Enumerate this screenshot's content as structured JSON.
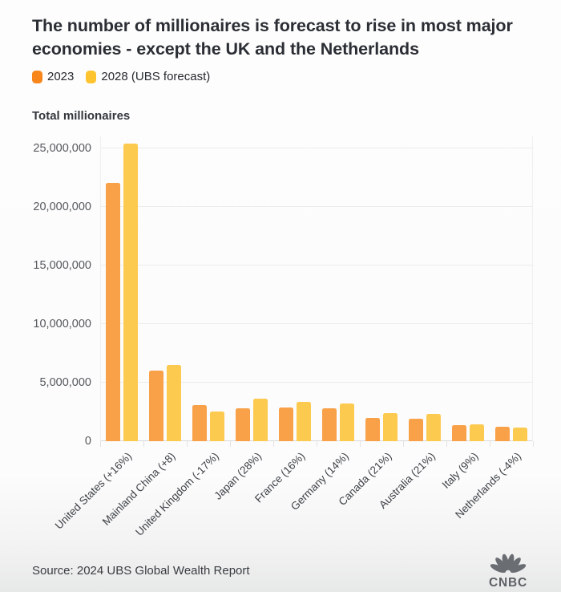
{
  "header": {
    "title": "The number of millionaires is forecast to rise in most major economies - except the UK and the Netherlands"
  },
  "legend": {
    "items": [
      {
        "label": "2023",
        "color": "#f8861b"
      },
      {
        "label": "2028 (UBS forecast)",
        "color": "#fdc42f"
      }
    ]
  },
  "chart_data": {
    "type": "bar",
    "title": "Total millionaires",
    "categories": [
      "United States (+16%)",
      "Mainland China (+8)",
      "United Kingdom (-17%)",
      "Japan (28%)",
      "France (16%)",
      "Germany (14%)",
      "Canada (21%)",
      "Australia (21%)",
      "Italy (9%)",
      "Netherlands (-4%)"
    ],
    "series": [
      {
        "name": "2023",
        "color": "#f9a148",
        "values": [
          22000000,
          6000000,
          3060000,
          2830000,
          2870000,
          2820000,
          2000000,
          1940000,
          1340000,
          1230000
        ]
      },
      {
        "name": "2028 (UBS forecast)",
        "color": "#fdca50",
        "values": [
          25400000,
          6500000,
          2540000,
          3620000,
          3330000,
          3220000,
          2400000,
          2340000,
          1460000,
          1180000
        ]
      }
    ],
    "xlabel": "",
    "ylabel": "Total millionaires",
    "ylim": [
      0,
      26000000
    ],
    "yticks": [
      0,
      5000000,
      10000000,
      15000000,
      20000000,
      25000000
    ],
    "grid": true,
    "legend_position": "top"
  },
  "footer": {
    "source": "Source: 2024 UBS Global Wealth Report",
    "logo_text": "CNBC"
  }
}
